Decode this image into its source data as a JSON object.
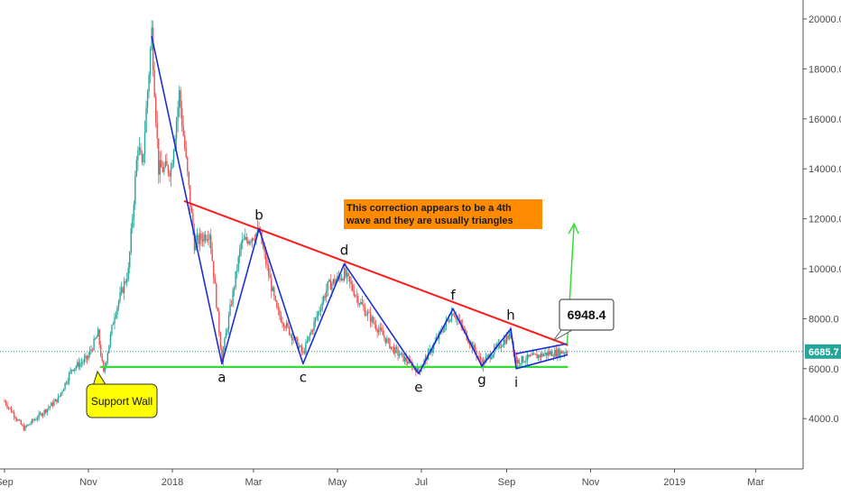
{
  "chart_data": {
    "type": "line",
    "title": "",
    "xlabel": "",
    "ylabel": "",
    "ylim": [
      2000,
      21000
    ],
    "y_ticks": [
      "4000.0",
      "6000.0",
      "8000.0",
      "10000.0",
      "12000.0",
      "14000.0",
      "16000.0",
      "18000.0",
      "20000.0"
    ],
    "x_ticks": [
      {
        "label": "Sep",
        "date": "2017-09-01"
      },
      {
        "label": "Nov",
        "date": "2017-11-01"
      },
      {
        "label": "2018",
        "date": "2018-01-01"
      },
      {
        "label": "Mar",
        "date": "2018-03-01"
      },
      {
        "label": "May",
        "date": "2018-05-01"
      },
      {
        "label": "Jul",
        "date": "2018-07-01"
      },
      {
        "label": "Sep",
        "date": "2018-09-01"
      },
      {
        "label": "Nov",
        "date": "2018-11-01"
      },
      {
        "label": "2019",
        "date": "2019-01-01"
      },
      {
        "label": "Mar",
        "date": "2019-03-01"
      }
    ],
    "last_price": {
      "value": 6685.7,
      "label": "6685.7",
      "color": "#26a69a"
    },
    "colors": {
      "up": "#26a69a",
      "down": "#ef5350",
      "wave": "#1a2fd6",
      "resistance": "#ff1a1a",
      "support": "#33dd33",
      "breakout": "#33dd33"
    },
    "price_series": {
      "name": "",
      "points": [
        [
          "2017-09-01",
          4700
        ],
        [
          "2017-09-15",
          3600
        ],
        [
          "2017-09-30",
          4300
        ],
        [
          "2017-10-10",
          4800
        ],
        [
          "2017-10-20",
          6000
        ],
        [
          "2017-10-31",
          6400
        ],
        [
          "2017-11-08",
          7400
        ],
        [
          "2017-11-12",
          5800
        ],
        [
          "2017-11-20",
          8200
        ],
        [
          "2017-11-30",
          9900
        ],
        [
          "2017-12-07",
          15000
        ],
        [
          "2017-12-10",
          14000
        ],
        [
          "2017-12-17",
          19500
        ],
        [
          "2017-12-22",
          14000
        ],
        [
          "2017-12-31",
          14000
        ],
        [
          "2018-01-06",
          17000
        ],
        [
          "2018-01-17",
          11000
        ],
        [
          "2018-01-28",
          11500
        ],
        [
          "2018-02-06",
          6400
        ],
        [
          "2018-02-20",
          11000
        ],
        [
          "2018-03-05",
          11500
        ],
        [
          "2018-03-18",
          8300
        ],
        [
          "2018-04-06",
          6600
        ],
        [
          "2018-04-24",
          9300
        ],
        [
          "2018-05-06",
          9800
        ],
        [
          "2018-05-20",
          8400
        ],
        [
          "2018-06-10",
          6800
        ],
        [
          "2018-06-29",
          5900
        ],
        [
          "2018-07-24",
          8300
        ],
        [
          "2018-08-14",
          6200
        ],
        [
          "2018-09-04",
          7400
        ],
        [
          "2018-09-08",
          6300
        ],
        [
          "2018-09-30",
          6600
        ],
        [
          "2018-10-15",
          6700
        ]
      ]
    },
    "wave_points": [
      {
        "label": "",
        "date": "2017-12-17",
        "value": 19300
      },
      {
        "label": "a",
        "date": "2018-02-06",
        "value": 6200
      },
      {
        "label": "b",
        "date": "2018-03-05",
        "value": 11600
      },
      {
        "label": "c",
        "date": "2018-04-06",
        "value": 6200
      },
      {
        "label": "d",
        "date": "2018-05-06",
        "value": 10200
      },
      {
        "label": "e",
        "date": "2018-06-29",
        "value": 5800
      },
      {
        "label": "f",
        "date": "2018-07-24",
        "value": 8400
      },
      {
        "label": "g",
        "date": "2018-08-14",
        "value": 6100
      },
      {
        "label": "h",
        "date": "2018-09-04",
        "value": 7600
      },
      {
        "label": "i",
        "date": "2018-09-08",
        "value": 6000
      }
    ],
    "resistance_line": [
      {
        "date": "2018-01-10",
        "value": 12700
      },
      {
        "date": "2018-10-15",
        "value": 6950
      }
    ],
    "support_line": [
      {
        "date": "2017-11-10",
        "value": 6070
      },
      {
        "date": "2018-10-15",
        "value": 6070
      }
    ],
    "inner_triangle": {
      "upper": [
        {
          "date": "2018-09-08",
          "value": 6600
        },
        {
          "date": "2018-10-15",
          "value": 7000
        }
      ],
      "lower": [
        {
          "date": "2018-09-08",
          "value": 6000
        },
        {
          "date": "2018-10-15",
          "value": 6550
        }
      ]
    },
    "breakout_arrow": [
      {
        "date": "2018-10-15",
        "value": 7000
      },
      {
        "date": "2018-10-20",
        "value": 11800
      }
    ],
    "annotations": {
      "note_line1": "This correction appears to be a 4th",
      "note_line2": "wave and they are usually triangles",
      "note_color": "#ff8c00",
      "callout_value": "6948.4",
      "support_label": "Support Wall",
      "support_label_color": "#ffff00"
    }
  }
}
